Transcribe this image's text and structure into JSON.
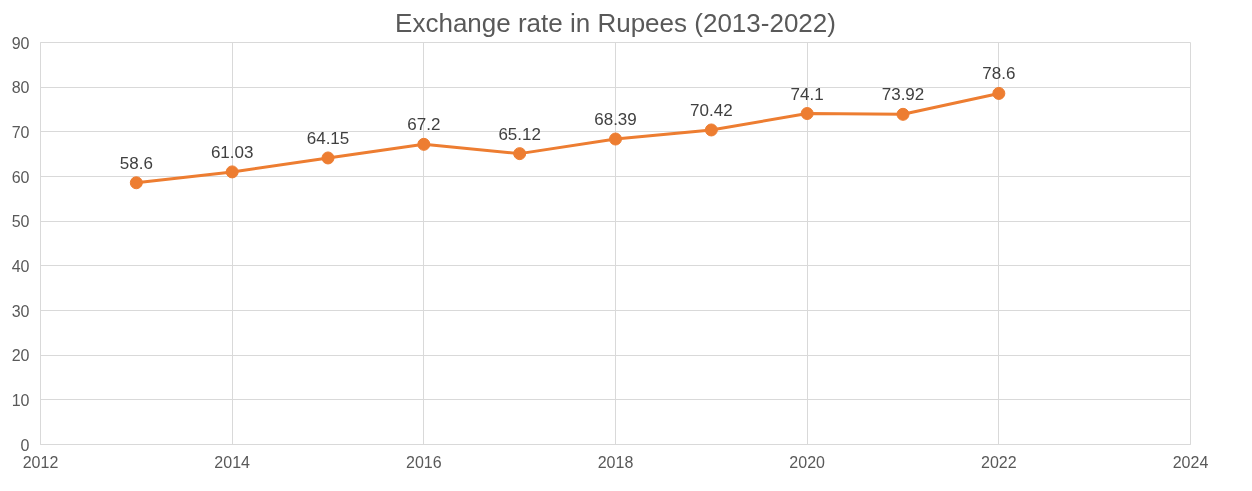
{
  "chart_data": {
    "type": "line",
    "title": "Exchange rate in Rupees (2013-2022)",
    "x": [
      2013,
      2014,
      2015,
      2016,
      2017,
      2018,
      2019,
      2020,
      2021,
      2022
    ],
    "series": [
      {
        "color": "#ed7d31",
        "values": [
          58.6,
          61.03,
          64.15,
          67.2,
          65.12,
          68.39,
          70.42,
          74.1,
          73.92,
          78.6
        ]
      }
    ],
    "xlim": [
      2012,
      2024
    ],
    "xticks": [
      2012,
      2014,
      2016,
      2018,
      2020,
      2022,
      2024
    ],
    "ylim": [
      0,
      90
    ],
    "yticks": [
      0,
      10,
      20,
      30,
      40,
      50,
      60,
      70,
      80,
      90
    ],
    "grid": true,
    "marker": "circle",
    "data_labels": true
  }
}
